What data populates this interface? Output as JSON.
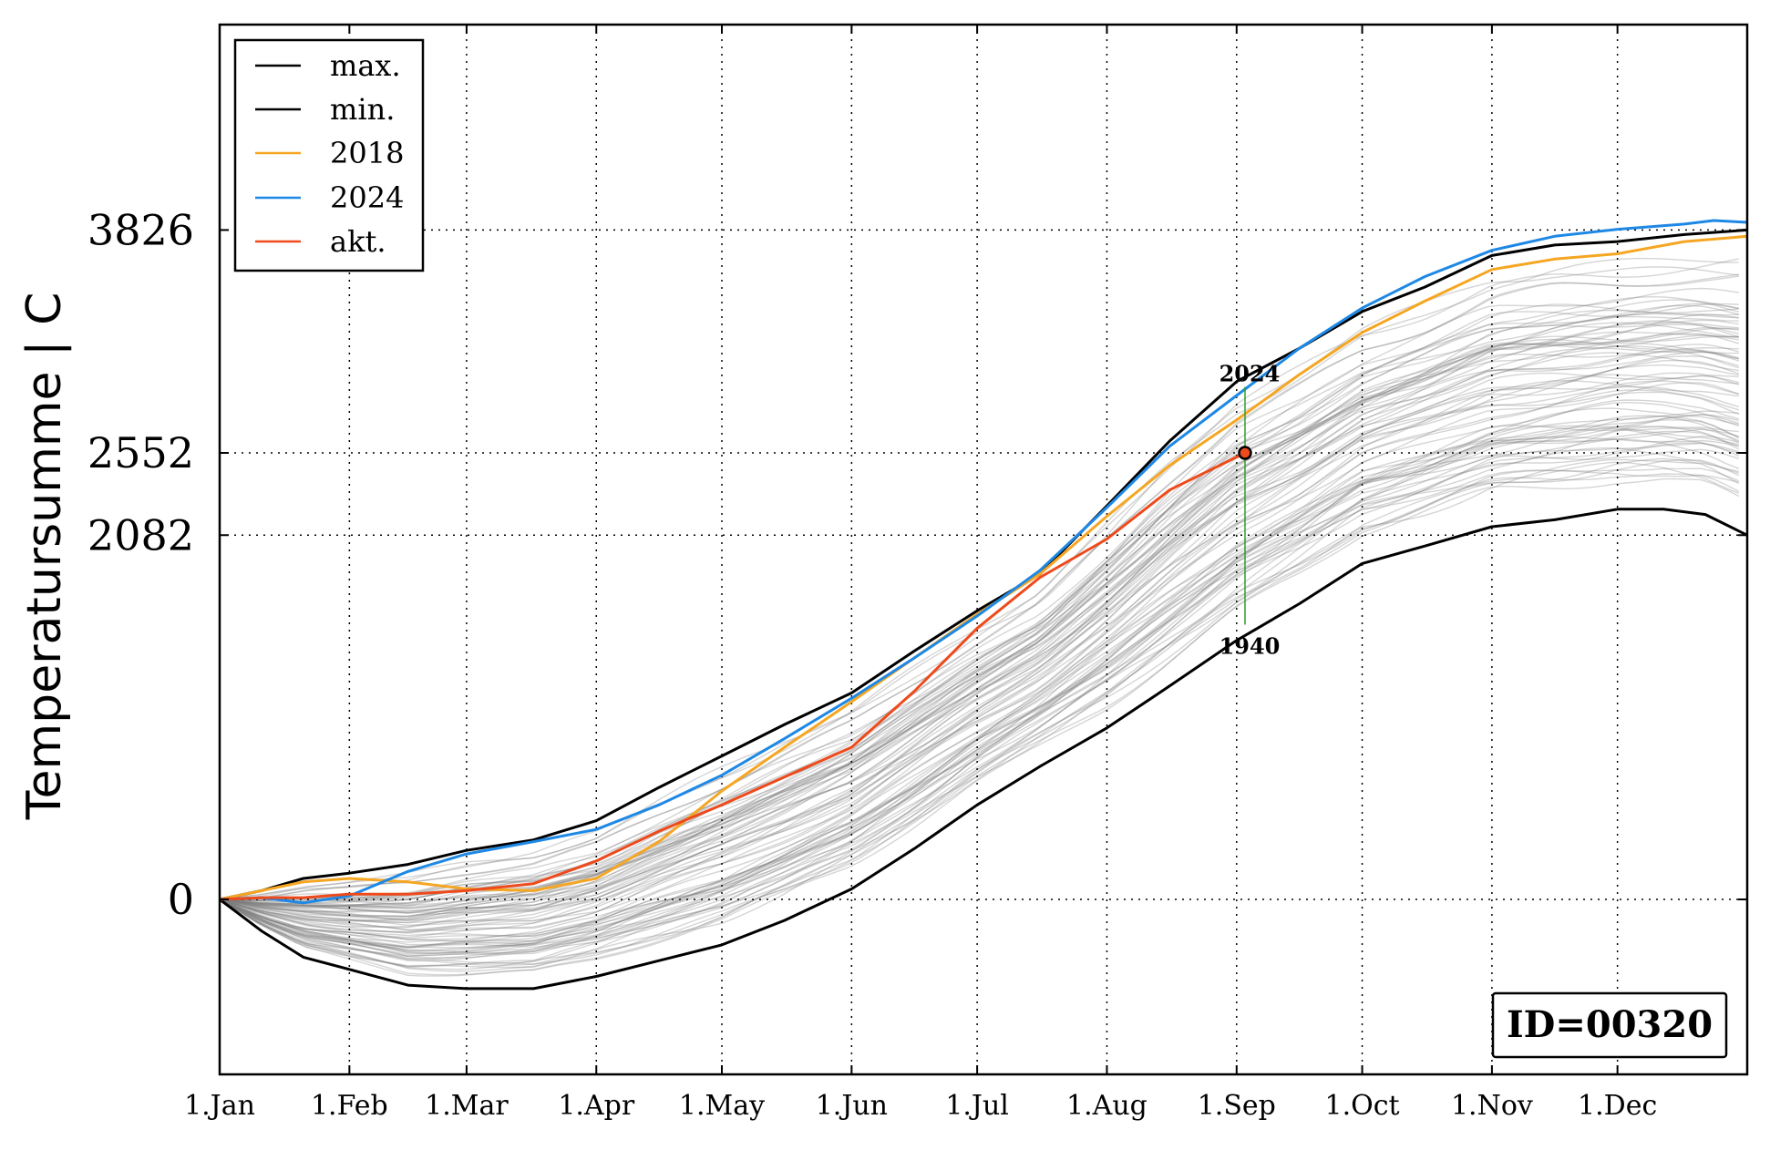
{
  "chart_data": {
    "type": "line",
    "ylabel": "Temperatursumme | C",
    "xlim": [
      0,
      365
    ],
    "ylim": [
      -1000,
      5000
    ],
    "x_ticks": [
      {
        "day": 0,
        "label": "1.Jan"
      },
      {
        "day": 31,
        "label": "1.Feb"
      },
      {
        "day": 59,
        "label": "1.Mar"
      },
      {
        "day": 90,
        "label": "1.Apr"
      },
      {
        "day": 120,
        "label": "1.May"
      },
      {
        "day": 151,
        "label": "1.Jun"
      },
      {
        "day": 181,
        "label": "1.Jul"
      },
      {
        "day": 212,
        "label": "1.Aug"
      },
      {
        "day": 243,
        "label": "1.Sep"
      },
      {
        "day": 273,
        "label": "1.Oct"
      },
      {
        "day": 304,
        "label": "1.Nov"
      },
      {
        "day": 334,
        "label": "1.Dec"
      }
    ],
    "y_ticks": [
      {
        "value": 0,
        "label": "0"
      },
      {
        "value": 2082,
        "label": "2082"
      },
      {
        "value": 2552,
        "label": "2552"
      },
      {
        "value": 3826,
        "label": "3826"
      }
    ],
    "grid": true,
    "legend_position": "top-left",
    "background_series": "gray historical yearly curves (approx. 80 years)",
    "series": [
      {
        "name": "max.",
        "color": "#000000",
        "x": [
          0,
          10,
          20,
          31,
          45,
          59,
          75,
          90,
          105,
          120,
          135,
          151,
          166,
          181,
          196,
          212,
          227,
          243,
          258,
          273,
          288,
          304,
          319,
          334,
          350,
          365
        ],
        "y": [
          0,
          50,
          120,
          150,
          200,
          280,
          340,
          450,
          640,
          820,
          1000,
          1180,
          1420,
          1650,
          1860,
          2250,
          2620,
          2960,
          3150,
          3360,
          3500,
          3680,
          3740,
          3760,
          3800,
          3826
        ]
      },
      {
        "name": "min.",
        "color": "#000000",
        "x": [
          0,
          10,
          20,
          31,
          45,
          59,
          75,
          90,
          105,
          120,
          135,
          151,
          166,
          181,
          196,
          212,
          227,
          243,
          258,
          273,
          288,
          304,
          319,
          334,
          345,
          355,
          365
        ],
        "y": [
          0,
          -180,
          -330,
          -400,
          -490,
          -510,
          -510,
          -440,
          -350,
          -260,
          -120,
          60,
          290,
          540,
          760,
          980,
          1220,
          1480,
          1690,
          1920,
          2020,
          2130,
          2170,
          2230,
          2230,
          2200,
          2082
        ]
      },
      {
        "name": "2018",
        "color": "#f5a623",
        "x": [
          0,
          10,
          20,
          31,
          45,
          59,
          75,
          90,
          105,
          120,
          135,
          151,
          166,
          181,
          196,
          212,
          227,
          243,
          258,
          273,
          288,
          304,
          319,
          334,
          350,
          365
        ],
        "y": [
          0,
          50,
          100,
          120,
          100,
          60,
          50,
          120,
          330,
          620,
          870,
          1130,
          1380,
          1630,
          1860,
          2190,
          2480,
          2740,
          3000,
          3240,
          3420,
          3600,
          3660,
          3690,
          3760,
          3790
        ]
      },
      {
        "name": "2024",
        "color": "#1e88e5",
        "x": [
          0,
          10,
          20,
          31,
          45,
          59,
          75,
          90,
          105,
          120,
          135,
          151,
          166,
          181,
          196,
          212,
          227,
          243,
          258,
          273,
          288,
          304,
          319,
          334,
          350,
          357,
          365
        ],
        "y": [
          0,
          10,
          -20,
          20,
          160,
          260,
          330,
          400,
          540,
          710,
          920,
          1150,
          1380,
          1620,
          1880,
          2240,
          2590,
          2880,
          3150,
          3380,
          3560,
          3710,
          3790,
          3830,
          3860,
          3880,
          3870
        ]
      },
      {
        "name": "akt.",
        "color": "#ee4a1c",
        "x": [
          0,
          10,
          20,
          31,
          45,
          59,
          75,
          90,
          105,
          120,
          135,
          151,
          166,
          181,
          196,
          212,
          227,
          245
        ],
        "y": [
          0,
          10,
          10,
          30,
          30,
          50,
          90,
          220,
          390,
          540,
          700,
          870,
          1190,
          1550,
          1840,
          2060,
          2340,
          2552
        ]
      }
    ],
    "annotations": {
      "current_value": 2552,
      "current_day": 245,
      "top_label": "2024",
      "bottom_label": "1940",
      "top_value": 2930,
      "bottom_value": 1570
    },
    "id_box": "ID=00320"
  }
}
